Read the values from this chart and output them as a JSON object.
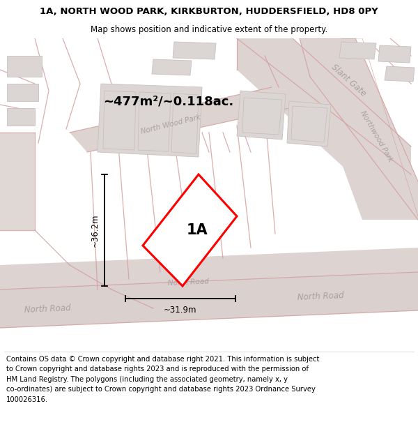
{
  "title_line1": "1A, NORTH WOOD PARK, KIRKBURTON, HUDDERSFIELD, HD8 0PY",
  "title_line2": "Map shows position and indicative extent of the property.",
  "footer_lines": [
    "Contains OS data © Crown copyright and database right 2021. This information is subject to Crown copyright and database rights 2023 and is reproduced with the permission of",
    "HM Land Registry. The polygons (including the associated geometry, namely x, y co-ordinates) are subject to Crown copyright and database rights 2023 Ordnance Survey",
    "100026316."
  ],
  "area_label": "~477m²/~0.118ac.",
  "plot_label": "1A",
  "dim_width": "~31.9m",
  "dim_height": "~36.2m",
  "map_bg": "#f5efee",
  "road_fill": "#ddd4d2",
  "road_line": "#d4a0a0",
  "building_fill": "#dbd5d3",
  "building_edge": "#c8c0be",
  "plot_edge": "#ff0000",
  "text_road": "#aaa0a0",
  "title_fs": 9.5,
  "sub_fs": 8.5,
  "footer_fs": 7.2,
  "area_fs": 13,
  "label_fs": 15,
  "dim_fs": 8.5
}
